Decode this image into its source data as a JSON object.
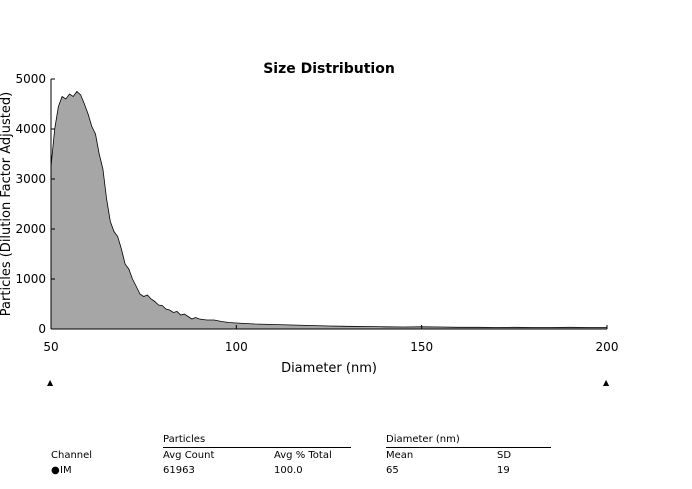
{
  "chart_data": {
    "type": "area",
    "title": "Size Distribution",
    "xlabel": "Diameter (nm)",
    "ylabel": "Particles (Dilution Factor Adjusted)",
    "xlim": [
      50,
      200
    ],
    "ylim": [
      0,
      5000
    ],
    "xticks": [
      50,
      100,
      150,
      200
    ],
    "yticks": [
      0,
      1000,
      2000,
      3000,
      4000,
      5000
    ],
    "grid": false,
    "fill_color": "#a6a6a6",
    "x": [
      50,
      51,
      52,
      53,
      54,
      55,
      56,
      57,
      58,
      59,
      60,
      61,
      62,
      63,
      64,
      65,
      66,
      67,
      68,
      69,
      70,
      71,
      72,
      73,
      74,
      75,
      76,
      77,
      78,
      79,
      80,
      81,
      82,
      83,
      84,
      85,
      86,
      87,
      88,
      89,
      90,
      92,
      94,
      96,
      98,
      100,
      105,
      110,
      115,
      120,
      125,
      130,
      135,
      140,
      145,
      150,
      155,
      160,
      165,
      170,
      175,
      180,
      185,
      190,
      195,
      200
    ],
    "y": [
      3250,
      4000,
      4450,
      4650,
      4600,
      4700,
      4650,
      4750,
      4680,
      4500,
      4300,
      4050,
      3900,
      3500,
      3200,
      2600,
      2150,
      1950,
      1850,
      1600,
      1300,
      1200,
      1000,
      850,
      700,
      650,
      680,
      600,
      550,
      480,
      470,
      400,
      380,
      330,
      350,
      280,
      300,
      250,
      200,
      230,
      200,
      180,
      180,
      150,
      130,
      120,
      100,
      90,
      80,
      70,
      60,
      55,
      50,
      45,
      40,
      45,
      40,
      35,
      35,
      30,
      35,
      30,
      30,
      35,
      30,
      30
    ]
  },
  "markers": {
    "left": "▲",
    "right": "▲"
  },
  "summary": {
    "particles_header": "Particles",
    "diameter_header": "Diameter (nm)",
    "col_channel": "Channel",
    "col_avg_count": "Avg Count",
    "col_avg_pct": "Avg % Total",
    "col_mean": "Mean",
    "col_sd": "SD",
    "row": {
      "bullet": "●",
      "channel": "IM",
      "avg_count": "61963",
      "avg_pct": "100.0",
      "mean": "65",
      "sd": "19"
    }
  }
}
